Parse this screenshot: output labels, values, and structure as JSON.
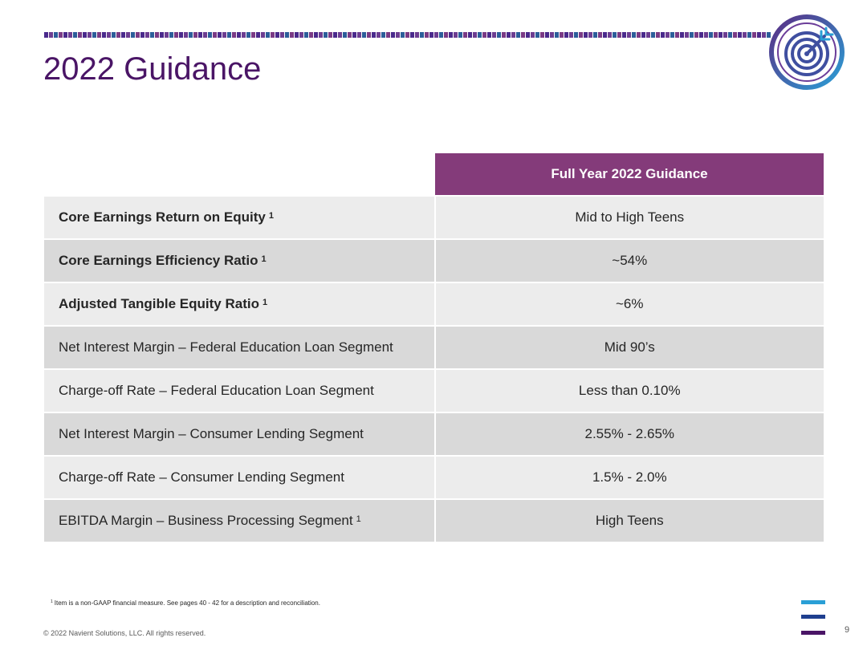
{
  "header": {
    "title": "2022 Guidance"
  },
  "logo": {
    "icon": "target-icon",
    "colors": [
      "#5b2c83",
      "#2a9fd6"
    ]
  },
  "table": {
    "column_header": "Full Year 2022 Guidance",
    "rows": [
      {
        "label": "Core Earnings Return on Equity",
        "sup": "1",
        "value": "Mid to High Teens",
        "bold": true
      },
      {
        "label": "Core Earnings Efficiency Ratio",
        "sup": "1",
        "value": "~54%",
        "bold": true
      },
      {
        "label": "Adjusted Tangible Equity Ratio",
        "sup": "1",
        "value": "~6%",
        "bold": true
      },
      {
        "label": "Net Interest Margin – Federal Education Loan Segment",
        "sup": "",
        "value": "Mid 90’s",
        "bold": false
      },
      {
        "label": "Charge-off Rate – Federal Education Loan Segment",
        "sup": "",
        "value": "Less than 0.10%",
        "bold": false
      },
      {
        "label": "Net Interest Margin – Consumer Lending Segment",
        "sup": "",
        "value": "2.55% - 2.65%",
        "bold": false
      },
      {
        "label": "Charge-off Rate – Consumer Lending Segment",
        "sup": "",
        "value": "1.5% - 2.0%",
        "bold": false
      },
      {
        "label": "EBITDA Margin – Business Processing Segment",
        "sup": "1",
        "value": "High Teens",
        "bold": false
      }
    ]
  },
  "footnote": {
    "marker": "1",
    "text": "Item is a non-GAAP financial measure.  See pages 40 - 42  for a description and reconciliation."
  },
  "footer": {
    "copyright": "© 2022 Navient Solutions, LLC. All rights reserved.",
    "page_number": "9",
    "brand_colors": [
      "#2a9fd6",
      "#1f3f8f",
      "#4a1566"
    ]
  }
}
